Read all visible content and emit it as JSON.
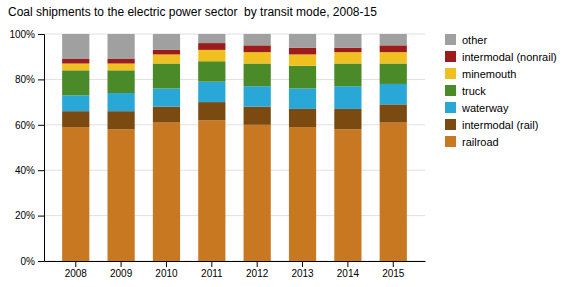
{
  "chart_data": {
    "type": "bar",
    "stacked": true,
    "title": "Coal shipments to the electric power sector  by transit mode, 2008-15",
    "categories": [
      "2008",
      "2009",
      "2010",
      "2011",
      "2012",
      "2013",
      "2014",
      "2015"
    ],
    "series": [
      {
        "name": "railroad",
        "color": "#c87820",
        "values": [
          59,
          58,
          61,
          62,
          60,
          59,
          58,
          61
        ]
      },
      {
        "name": "intermodal (rail)",
        "color": "#7b4a10",
        "values": [
          7,
          8,
          7,
          8,
          8,
          8,
          9,
          8
        ]
      },
      {
        "name": "waterway",
        "color": "#29a8d8",
        "values": [
          7,
          8,
          8,
          9,
          9,
          9,
          10,
          9
        ]
      },
      {
        "name": "truck",
        "color": "#4a8a28",
        "values": [
          11,
          10,
          11,
          9,
          10,
          10,
          10,
          9
        ]
      },
      {
        "name": "minemouth",
        "color": "#f0c020",
        "values": [
          3,
          3,
          4,
          5,
          5,
          5,
          5,
          5
        ]
      },
      {
        "name": "intermodal (nonrail)",
        "color": "#9c1c1c",
        "values": [
          2,
          2,
          2,
          3,
          3,
          3,
          2,
          3
        ]
      },
      {
        "name": "other",
        "color": "#a0a0a0",
        "values": [
          11,
          11,
          7,
          4,
          5,
          6,
          6,
          5
        ]
      }
    ],
    "ylim": [
      0,
      100
    ],
    "yticks": [
      {
        "value": 0,
        "label": "0%"
      },
      {
        "value": 20,
        "label": "20%"
      },
      {
        "value": 40,
        "label": "40%"
      },
      {
        "value": 60,
        "label": "60%"
      },
      {
        "value": 80,
        "label": "80%"
      },
      {
        "value": 100,
        "label": "100%"
      }
    ],
    "grid": true,
    "legend": "right"
  }
}
